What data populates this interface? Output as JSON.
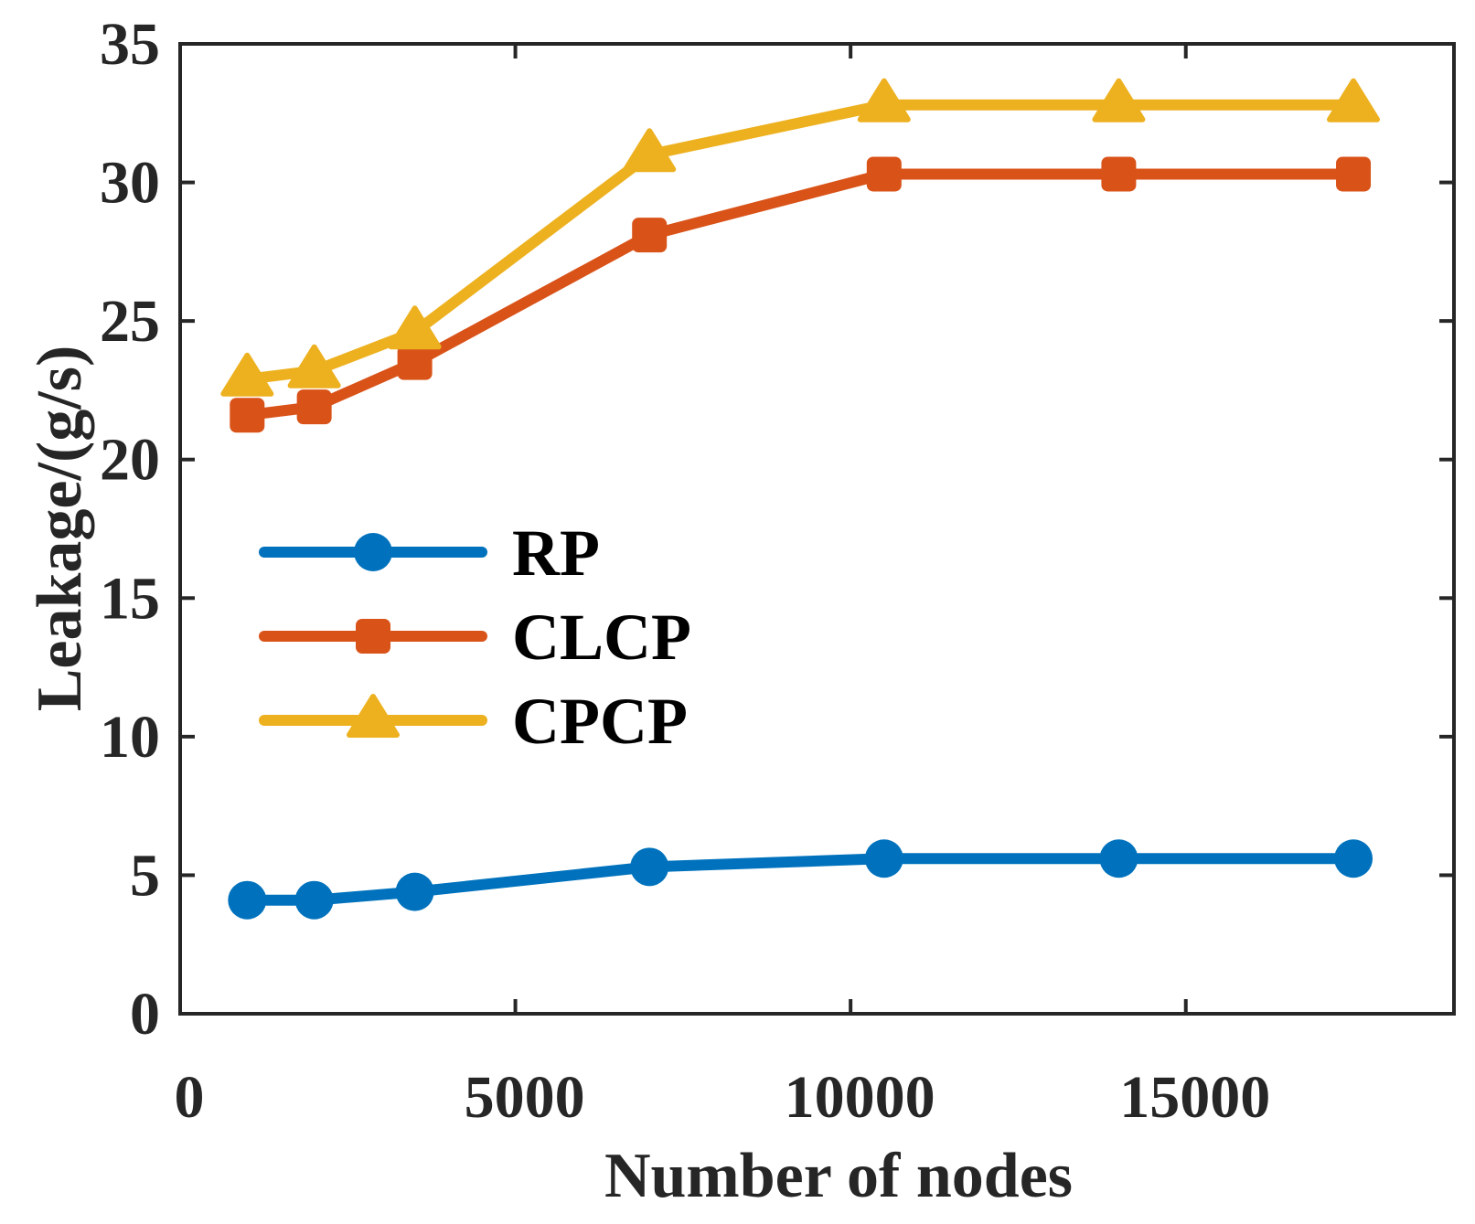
{
  "chart_data": {
    "type": "line",
    "title": "",
    "xlabel": "Number of nodes",
    "ylabel": "Leakage/(g/s)",
    "xlim": [
      0,
      19000
    ],
    "ylim": [
      0,
      35
    ],
    "xticks": [
      0,
      5000,
      10000,
      15000
    ],
    "yticks": [
      0,
      5,
      10,
      15,
      20,
      25,
      30,
      35
    ],
    "grid": false,
    "legend_position": "center-left",
    "x": [
      1000,
      2000,
      3500,
      7000,
      10500,
      14000,
      17500
    ],
    "series": [
      {
        "name": "RP",
        "marker": "circle",
        "color": "#0072BD",
        "values": [
          4.1,
          4.1,
          4.4,
          5.3,
          5.6,
          5.6,
          5.6
        ]
      },
      {
        "name": "CLCP",
        "marker": "square",
        "color": "#D95319",
        "values": [
          21.6,
          21.9,
          23.5,
          28.1,
          30.3,
          30.3,
          30.3
        ]
      },
      {
        "name": "CPCP",
        "marker": "triangle",
        "color": "#EDB120",
        "values": [
          22.9,
          23.2,
          24.6,
          31.0,
          32.8,
          32.8,
          32.8
        ]
      }
    ]
  }
}
